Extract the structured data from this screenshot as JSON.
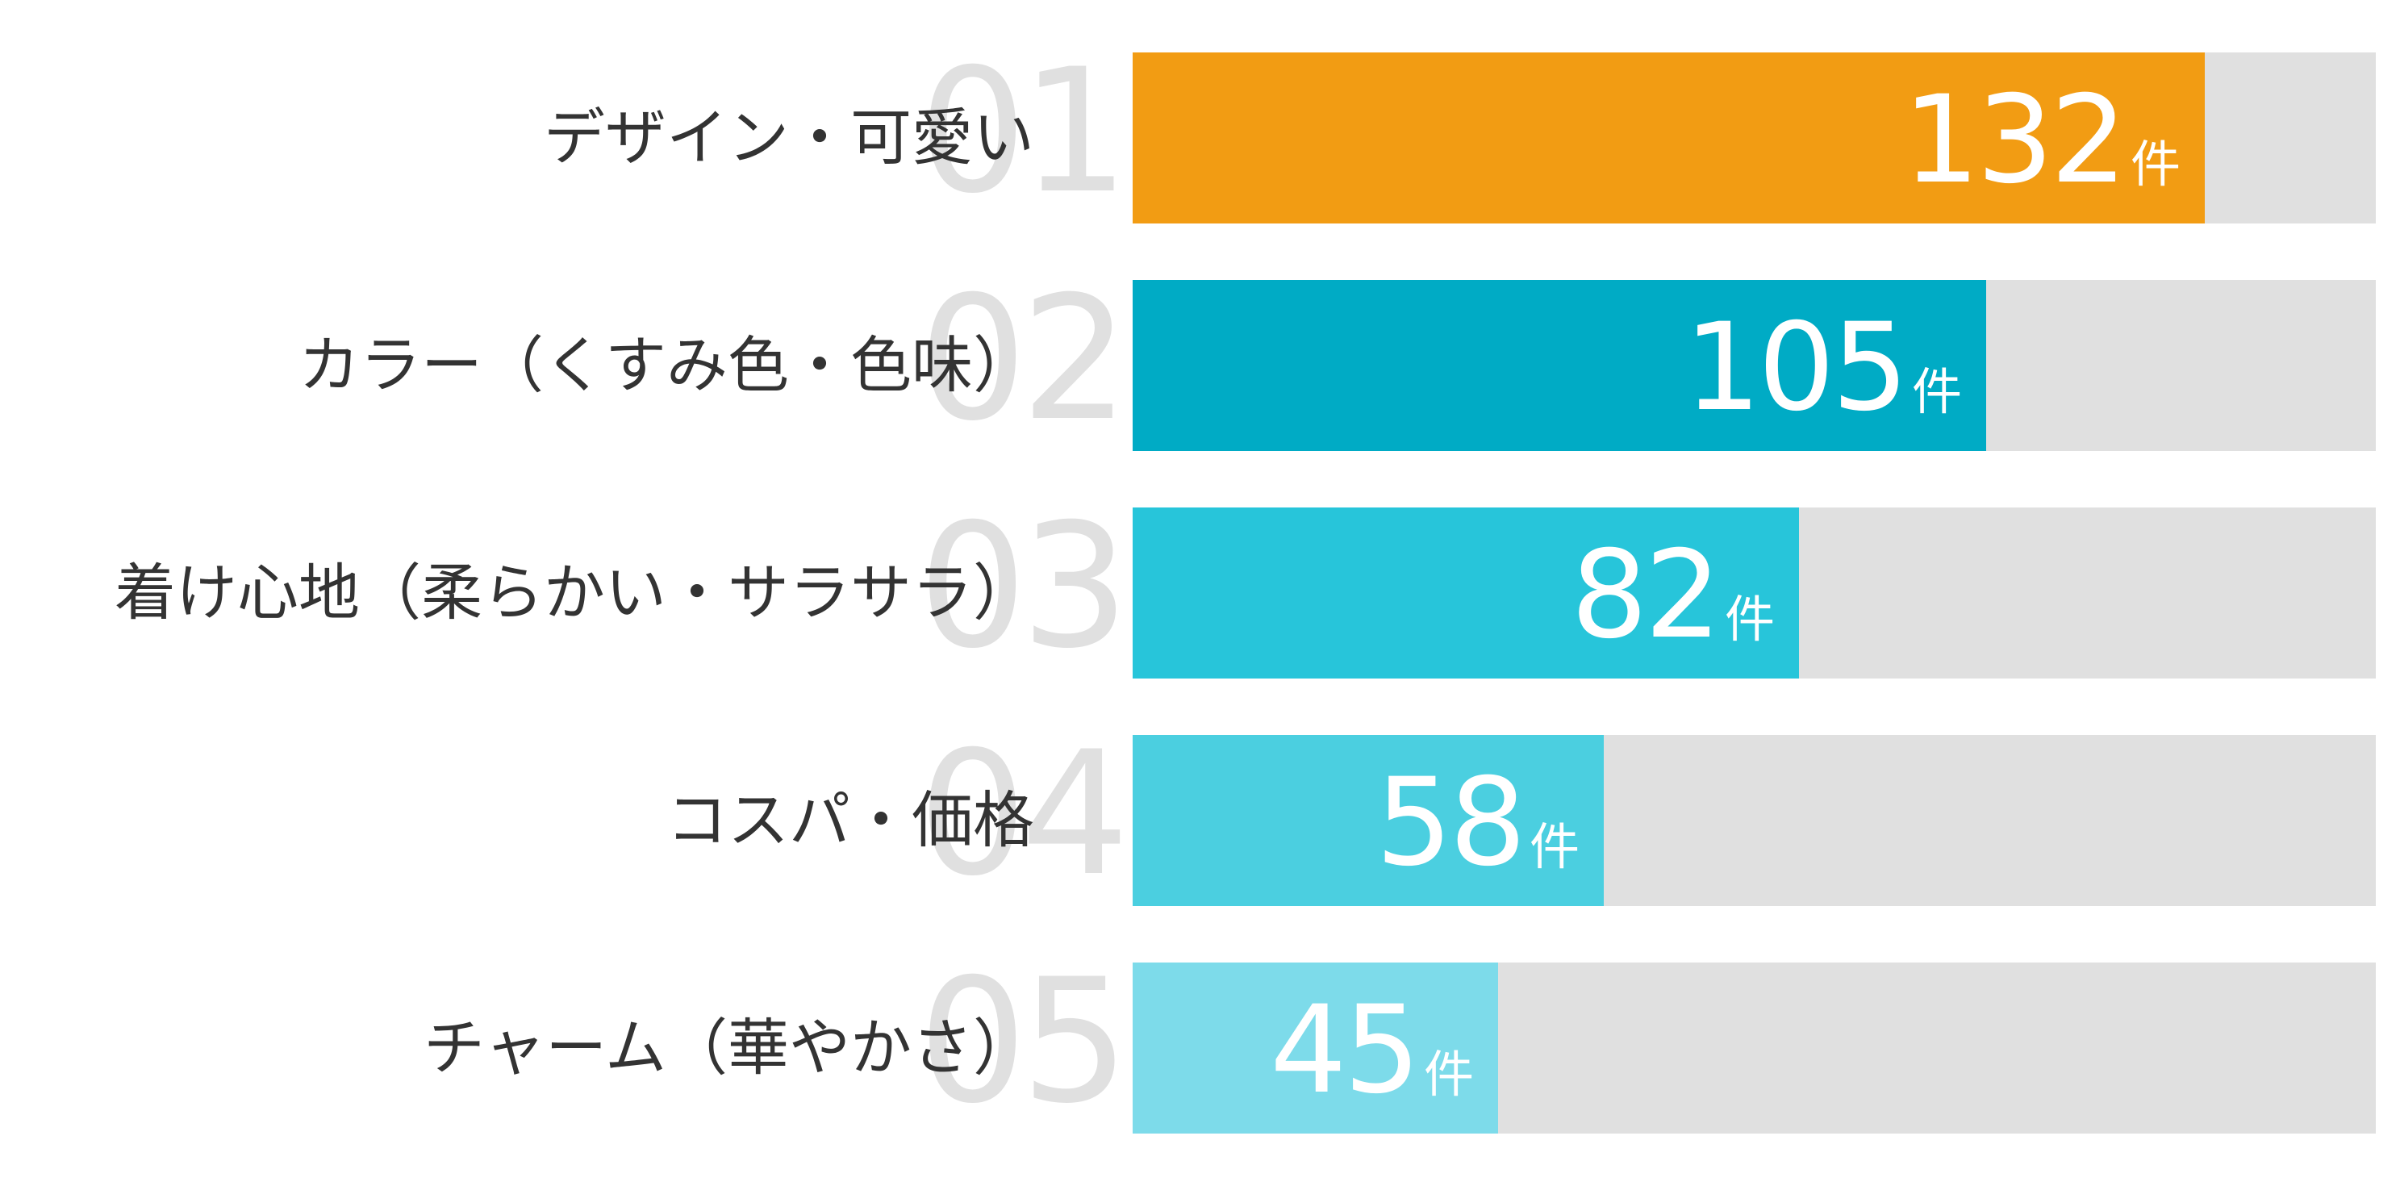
{
  "chart_data": {
    "type": "bar",
    "orientation": "horizontal",
    "categories": [
      "デザイン・可愛い",
      "カラー（くすみ色・色味）",
      "着け心地（柔らかい・サラサラ）",
      "コスパ・価格",
      "チャーム（華やかさ）"
    ],
    "ranks": [
      "01",
      "02",
      "03",
      "04",
      "05"
    ],
    "values": [
      132,
      105,
      82,
      58,
      45
    ],
    "unit": "件",
    "xlim": [
      0,
      153
    ],
    "colors": [
      "#f29c13",
      "#00abc5",
      "#27c5da",
      "#4bcfe0",
      "#7ddbea"
    ],
    "track_color": "#e0e0e0",
    "grid": false,
    "legend": "none",
    "title": "",
    "xlabel": "",
    "ylabel": ""
  }
}
